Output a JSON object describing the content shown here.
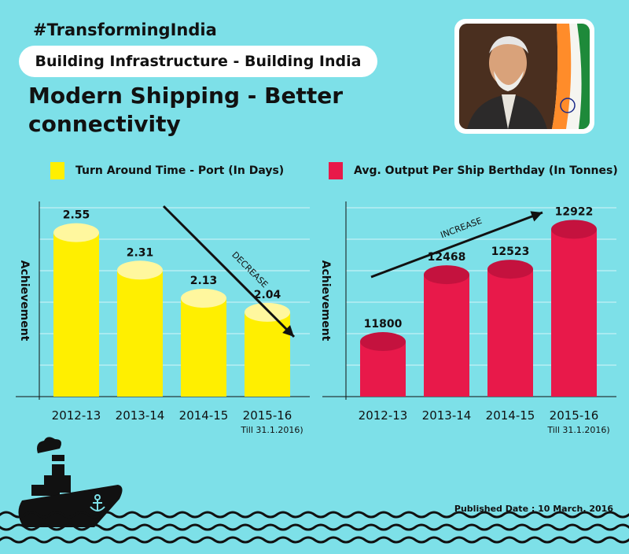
{
  "header": {
    "hashtag": "#TransformingIndia",
    "subtitle": "Building Infrastructure - Building India",
    "title": "Modern Shipping - Better connectivity"
  },
  "chart_data": [
    {
      "type": "bar",
      "legend": "Turn Around Time -  Port (In Days)",
      "ylabel": "Achievement",
      "categories": [
        "2012-13",
        "2013-14",
        "2014-15",
        "2015-16"
      ],
      "category_note": "Till 31.1.2016)",
      "values": [
        2.55,
        2.31,
        2.13,
        2.04
      ],
      "value_labels": [
        "2.55",
        "2.31",
        "2.13",
        "2.04"
      ],
      "ylim": [
        1.5,
        2.75
      ],
      "trend_label": "DECREASE",
      "color": "#ffef00",
      "cap_color": "#fff79e"
    },
    {
      "type": "bar",
      "legend": "Avg. Output Per Ship Berthday (In Tonnes)",
      "ylabel": "Achievement",
      "categories": [
        "2012-13",
        "2013-14",
        "2014-15",
        "2015-16"
      ],
      "category_note": "Till 31.1.2016)",
      "values": [
        11800,
        12468,
        12523,
        12922
      ],
      "value_labels": [
        "11800",
        "12468",
        "12523",
        "12922"
      ],
      "ylim": [
        11250,
        13200
      ],
      "trend_label": "INCREASE",
      "color": "#e8194a",
      "cap_color": "#c4123e"
    }
  ],
  "footer": {
    "published": "Published Date : 10 March, 2016"
  },
  "colors": {
    "background": "#7de0e8"
  }
}
